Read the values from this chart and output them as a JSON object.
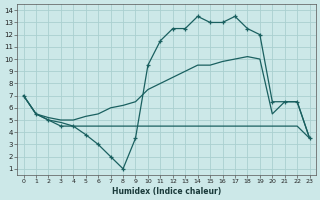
{
  "bg_color": "#cce8e8",
  "grid_color": "#aad0d0",
  "line_color": "#1a6060",
  "xlabel": "Humidex (Indice chaleur)",
  "xlim_min": -0.5,
  "xlim_max": 23.5,
  "ylim_min": 0.5,
  "ylim_max": 14.5,
  "xticks": [
    0,
    1,
    2,
    3,
    4,
    5,
    6,
    7,
    8,
    9,
    10,
    11,
    12,
    13,
    14,
    15,
    16,
    17,
    18,
    19,
    20,
    21,
    22,
    23
  ],
  "yticks": [
    1,
    2,
    3,
    4,
    5,
    6,
    7,
    8,
    9,
    10,
    11,
    12,
    13,
    14
  ],
  "curve1_x": [
    0,
    1,
    2,
    3,
    4,
    5,
    6,
    7,
    8,
    9,
    10,
    11,
    12,
    13,
    14,
    15,
    16,
    17,
    18,
    19,
    20,
    21,
    22,
    23
  ],
  "curve1_y": [
    7,
    5.5,
    5.0,
    4.5,
    4.5,
    3.8,
    3.0,
    2.0,
    1.0,
    3.5,
    9.5,
    11.5,
    12.5,
    12.5,
    13.5,
    13.0,
    13.0,
    13.5,
    12.5,
    12.0,
    6.5,
    6.5,
    6.5,
    3.5
  ],
  "curve2_x": [
    0,
    1,
    2,
    3,
    4,
    5,
    6,
    7,
    8,
    9,
    10,
    11,
    12,
    13,
    14,
    15,
    16,
    17,
    18,
    19,
    20,
    21,
    22,
    23
  ],
  "curve2_y": [
    7,
    5.5,
    5.2,
    5.0,
    5.0,
    5.3,
    5.5,
    6.0,
    6.2,
    6.5,
    7.5,
    8.0,
    8.5,
    9.0,
    9.5,
    9.5,
    9.8,
    10.0,
    10.2,
    10.0,
    5.5,
    6.5,
    6.5,
    3.5
  ],
  "curve3_x": [
    0,
    1,
    2,
    3,
    4,
    5,
    6,
    7,
    8,
    9,
    10,
    11,
    12,
    13,
    14,
    15,
    16,
    17,
    18,
    19,
    20,
    21,
    22,
    23
  ],
  "curve3_y": [
    7,
    5.5,
    5.0,
    4.8,
    4.5,
    4.5,
    4.5,
    4.5,
    4.5,
    4.5,
    4.5,
    4.5,
    4.5,
    4.5,
    4.5,
    4.5,
    4.5,
    4.5,
    4.5,
    4.5,
    4.5,
    4.5,
    4.5,
    3.5
  ]
}
